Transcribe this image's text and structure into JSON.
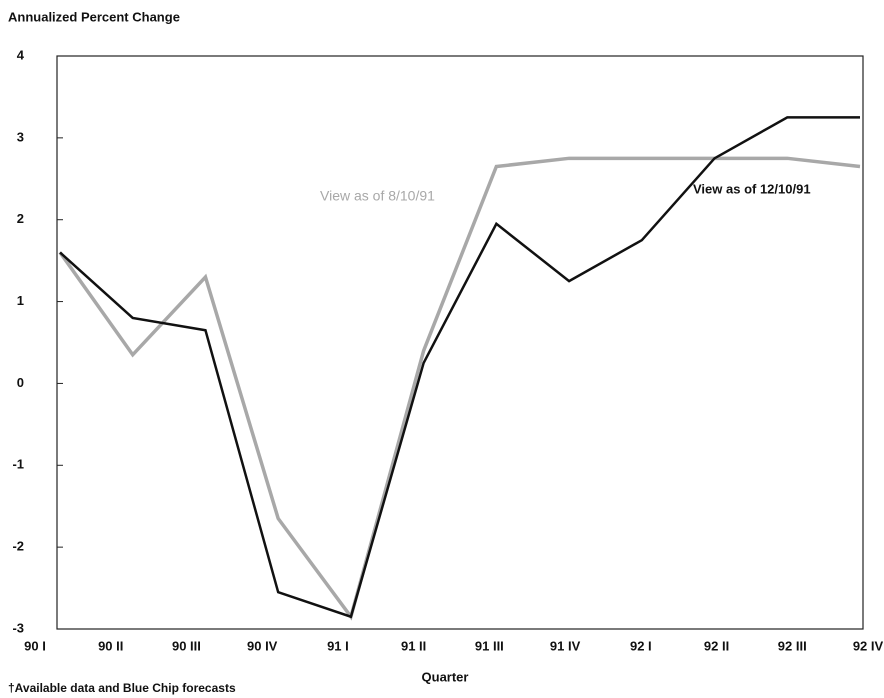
{
  "chart_data": {
    "type": "line",
    "y_axis_title": "Annualized Percent Change",
    "x_axis_title": "Quarter",
    "footnote": "†Available data and Blue Chip forecasts",
    "categories": [
      "90 I",
      "90 II",
      "90 III",
      "90 IV",
      "91 I",
      "91 II",
      "91 III",
      "91 IV",
      "92 I",
      "92 II",
      "92 III",
      "92 IV"
    ],
    "series": [
      {
        "name": "View as of 12/10/91",
        "color": "#111111",
        "values": [
          1.6,
          0.8,
          0.65,
          -2.55,
          -2.85,
          0.25,
          1.95,
          1.25,
          1.75,
          2.75,
          3.25,
          3.25
        ]
      },
      {
        "name": "View as of 8/10/91",
        "color": "#a8a8a8",
        "values": [
          1.6,
          0.35,
          1.3,
          -1.65,
          -2.85,
          0.4,
          2.65,
          2.75,
          2.75,
          2.75,
          2.75,
          2.65
        ]
      }
    ],
    "ylim": [
      -3,
      4
    ],
    "yticks": [
      -3,
      -2,
      -1,
      0,
      1,
      2,
      3,
      4
    ]
  }
}
